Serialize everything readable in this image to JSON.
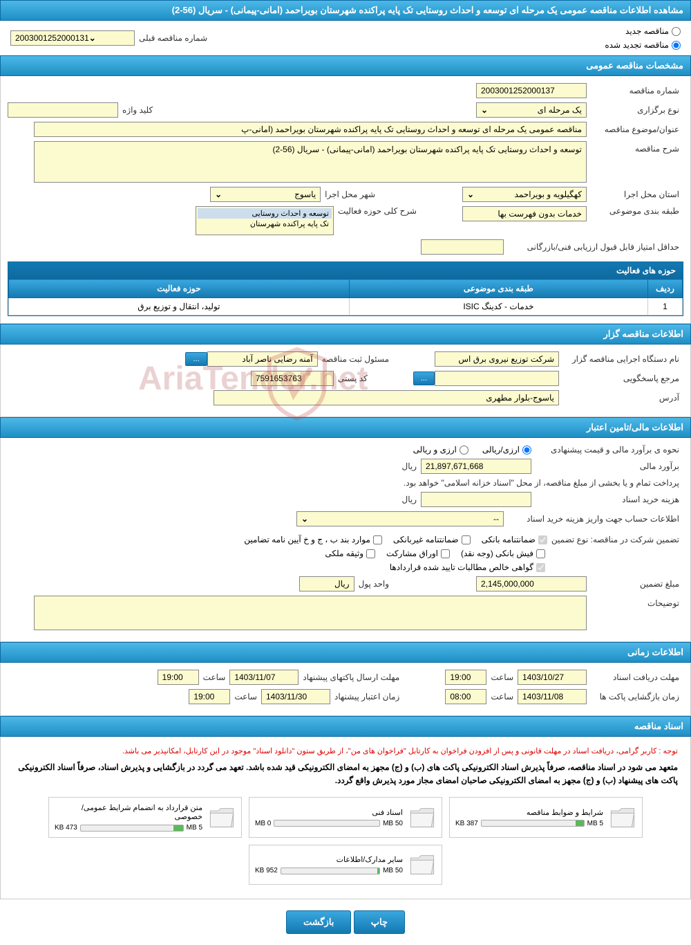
{
  "pageTitle": "مشاهده اطلاعات مناقصه عمومی یک مرحله ای توسعه و احداث روستایی تک پایه پراکنده شهرستان بویراحمد (امانی-پیمانی) - سریال (56-2)",
  "tenderType": {
    "newLabel": "مناقصه جدید",
    "renewedLabel": "مناقصه تجدید شده",
    "prevNumberLabel": "شماره مناقصه قبلی",
    "prevNumber": "2003001252000131"
  },
  "sections": {
    "general": "مشخصات مناقصه عمومی",
    "planner": "اطلاعات مناقصه گزار",
    "financial": "اطلاعات مالی/تامین اعتبار",
    "timing": "اطلاعات زمانی",
    "docs": "اسناد مناقصه"
  },
  "general": {
    "tenderNoLabel": "شماره مناقصه",
    "tenderNo": "2003001252000137",
    "typeLabel": "نوع برگزاری",
    "type": "یک مرحله ای",
    "keywordLabel": "کلید واژه",
    "keyword": "",
    "subjectLabel": "عنوان/موضوع مناقصه",
    "subject": "مناقصه عمومی یک مرحله ای توسعه و احداث روستایی تک پایه پراکنده شهرستان بویراحمد (امانی-پ",
    "descLabel": "شرح مناقصه",
    "desc": "توسعه و احداث روستایی تک پایه پراکنده شهرستان بویراحمد (امانی-پیمانی) - سریال (56-2)",
    "provinceLabel": "استان محل اجرا",
    "province": "کهگیلویه و بویراحمد",
    "cityLabel": "شهر محل اجرا",
    "city": "یاسوج",
    "categoryLabel": "طبقه بندی موضوعی",
    "category": "خدمات بدون فهرست بها",
    "activityDescLabel": "شرح کلی حوزه فعالیت",
    "activityOptions": [
      "توسعه و احداث روستایی",
      "تک پایه پراکنده شهرستان"
    ],
    "minScoreLabel": "حداقل امتیاز قابل قبول ارزیابی فنی/بازرگانی",
    "minScore": ""
  },
  "activityTable": {
    "title": "حوزه های فعالیت",
    "cols": [
      "ردیف",
      "طبقه بندی موضوعی",
      "حوزه فعالیت"
    ],
    "rows": [
      [
        "1",
        "خدمات - کدینگ ISIC",
        "تولید، انتقال و توزیع برق"
      ]
    ]
  },
  "planner": {
    "orgLabel": "نام دستگاه اجرایی مناقصه گزار",
    "org": "شرکت توزیع نیروی برق اس",
    "registrarLabel": "مسئول ثبت مناقصه",
    "registrar": "آمنه رضایی ناصر آباد",
    "contactLabel": "مرجع پاسخگویی",
    "contact": "",
    "postalLabel": "کد پستی",
    "postal": "7591653763",
    "addressLabel": "آدرس",
    "address": "یاسوج-بلوار مطهری",
    "moreBtn": "...",
    "moreBtn2": "..."
  },
  "financial": {
    "methodLabel": "نحوه ی برآورد مالی و قیمت پیشنهادی",
    "opt1": "ارزی/ریالی",
    "opt2": "ارزی و ریالی",
    "estimateLabel": "برآورد مالی",
    "estimate": "21,897,671,668",
    "currency": "ریال",
    "paymentNote": "پرداخت تمام و یا بخشی از مبلغ مناقصه، از محل \"اسناد خزانه اسلامی\" خواهد بود.",
    "purchaseCostLabel": "هزینه خرید اسناد",
    "purchaseCost": "",
    "accountLabel": "اطلاعات حساب جهت واریز هزینه خرید اسناد",
    "account": "--",
    "guaranteeHeader": "تضمین شرکت در مناقصه:    نوع تضمین",
    "chk": {
      "bank": "ضمانتنامه بانکی",
      "nonbank": "ضمانتنامه غیربانکی",
      "cases": "موارد بند ب ، ج و خ آیین نامه تضامین",
      "cash": "فیش بانکی (وجه نقد)",
      "bonds": "اوراق مشارکت",
      "property": "وثیقه ملکی",
      "cert": "گواهی خالص مطالبات تایید شده قراردادها"
    },
    "guaranteeAmountLabel": "مبلغ تضمین",
    "guaranteeAmount": "2,145,000,000",
    "unitLabel": "واحد پول",
    "unit": "ریال",
    "remarksLabel": "توضیحات",
    "remarks": ""
  },
  "timing": {
    "docDeadlineLabel": "مهلت دریافت اسناد",
    "docDeadline": "1403/10/27",
    "docDeadlineTimeLabel": "ساعت",
    "docDeadlineTime": "19:00",
    "proposalLabel": "مهلت ارسال پاکتهای پیشنهاد",
    "proposalDate": "1403/11/07",
    "proposalTimeLabel": "ساعت",
    "proposalTime": "19:00",
    "openingLabel": "زمان بازگشایی پاکت ها",
    "openingDate": "1403/11/08",
    "openingTimeLabel": "ساعت",
    "openingTime": "08:00",
    "validityLabel": "زمان اعتبار پیشنهاد",
    "validityDate": "1403/11/30",
    "validityTimeLabel": "ساعت",
    "validityTime": "19:00"
  },
  "docs": {
    "userNote": "توجه : کاربر گرامی، دریافت اسناد در مهلت قانونی و پس از افزودن فراخوان به کارتابل \"فراخوان های من\"، از طریق ستون \"دانلود اسناد\" موجود در این کارتابل، امکانپذیر می باشد.",
    "mainNote": "متعهد می شود در اسناد مناقصه، صرفاً پذیرش اسناد الکترونیکی پاکت های (ب) و (ج) مجهز به امضای الکترونیکی قید شده باشد. تعهد می گردد در بازگشایی و پذیرش اسناد، صرفاً اسناد الکترونیکی پاکت های پیشنهاد (ب) و (ج) مجهز به امضای الکترونیکی صاحبان امضای مجاز مورد پذیرش واقع گردد.",
    "files": [
      {
        "name": "شرایط و ضوابط مناقصه",
        "used": "387 KB",
        "max": "5 MB",
        "pct": 8
      },
      {
        "name": "اسناد فنی",
        "used": "0 MB",
        "max": "50 MB",
        "pct": 0
      },
      {
        "name": "متن قرارداد به انضمام شرایط عمومی/خصوصی",
        "used": "473 KB",
        "max": "5 MB",
        "pct": 9
      },
      {
        "name": "سایر مدارک/اطلاعات",
        "used": "952 KB",
        "max": "50 MB",
        "pct": 2
      }
    ]
  },
  "buttons": {
    "print": "چاپ",
    "back": "بازگشت"
  },
  "watermark": "AriaTender.net"
}
